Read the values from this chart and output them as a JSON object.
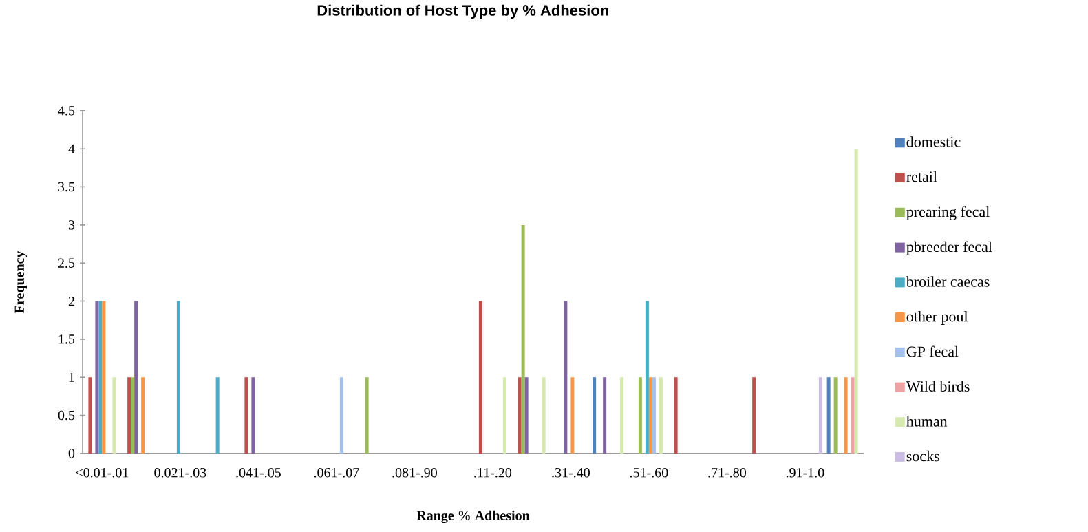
{
  "chart_data": {
    "type": "bar",
    "title": "Distribution of Host Type by % Adhesion",
    "xlabel": "Range % Adhesion",
    "ylabel": "Frequency",
    "categories": [
      "<0.01-.01",
      null,
      "0.021-.03",
      null,
      ".041-.05",
      null,
      ".061-.07",
      null,
      ".081-.90",
      null,
      ".11-.20",
      null,
      ".31-.40",
      null,
      ".51-.60",
      null,
      ".71-.80",
      null,
      ".91-1.0",
      null
    ],
    "series": [
      {
        "name": "domestic",
        "color": "#4f81bd",
        "values": [
          null,
          null,
          null,
          null,
          null,
          null,
          null,
          null,
          null,
          null,
          null,
          null,
          null,
          1,
          null,
          null,
          null,
          null,
          null,
          1
        ]
      },
      {
        "name": "retail",
        "color": "#c0504d",
        "values": [
          1,
          1,
          null,
          null,
          1,
          null,
          null,
          null,
          null,
          null,
          2,
          1,
          null,
          null,
          null,
          1,
          null,
          1,
          null,
          null
        ]
      },
      {
        "name": "prearing fecal",
        "color": "#9bbb59",
        "values": [
          null,
          1,
          null,
          null,
          null,
          null,
          null,
          1,
          null,
          null,
          null,
          3,
          null,
          null,
          1,
          null,
          null,
          null,
          null,
          1
        ]
      },
      {
        "name": "pbreeder fecal",
        "color": "#8064a2",
        "values": [
          2,
          2,
          null,
          null,
          1,
          null,
          null,
          null,
          null,
          null,
          null,
          1,
          2,
          1,
          null,
          null,
          null,
          null,
          null,
          null
        ]
      },
      {
        "name": "broiler caecas",
        "color": "#4bacc6",
        "values": [
          2,
          null,
          2,
          1,
          null,
          null,
          null,
          null,
          null,
          null,
          null,
          null,
          null,
          null,
          2,
          null,
          null,
          null,
          null,
          null
        ]
      },
      {
        "name": "other poul",
        "color": "#f79646",
        "values": [
          2,
          1,
          null,
          null,
          null,
          null,
          null,
          null,
          null,
          null,
          null,
          null,
          1,
          null,
          1,
          null,
          null,
          null,
          null,
          1
        ]
      },
      {
        "name": "GP fecal",
        "color": "#a5c0ea",
        "values": [
          null,
          null,
          null,
          null,
          null,
          null,
          1,
          null,
          null,
          null,
          null,
          null,
          null,
          null,
          1,
          null,
          null,
          null,
          null,
          null
        ]
      },
      {
        "name": "Wild birds",
        "color": "#eda3a3",
        "values": [
          null,
          null,
          null,
          null,
          null,
          null,
          null,
          null,
          null,
          null,
          null,
          null,
          null,
          null,
          null,
          null,
          null,
          null,
          null,
          1
        ]
      },
      {
        "name": "human",
        "color": "#d6eab0",
        "values": [
          1,
          null,
          null,
          null,
          null,
          null,
          null,
          null,
          null,
          null,
          1,
          1,
          null,
          1,
          1,
          null,
          null,
          null,
          null,
          4
        ]
      },
      {
        "name": "socks",
        "color": "#cbbde3",
        "values": [
          null,
          null,
          null,
          null,
          null,
          null,
          null,
          null,
          null,
          null,
          null,
          null,
          null,
          null,
          null,
          null,
          null,
          null,
          1,
          null
        ]
      }
    ],
    "ylim": [
      0,
      4.5
    ],
    "yticks": [
      0,
      0.5,
      1,
      1.5,
      2,
      2.5,
      3,
      3.5,
      4,
      4.5
    ],
    "legend": "right"
  }
}
